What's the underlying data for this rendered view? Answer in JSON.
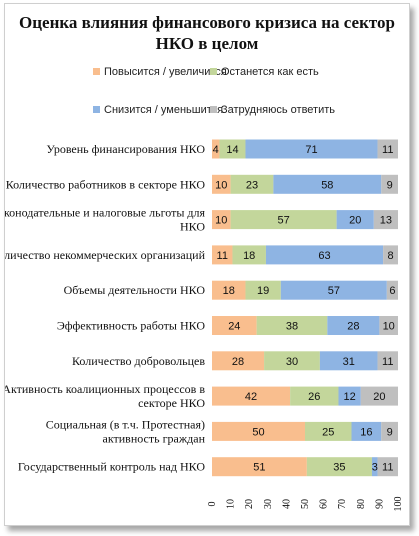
{
  "chart_data": {
    "type": "bar",
    "stacked": true,
    "orientation": "horizontal",
    "title": "Оценка влияния финансового кризиса на сектор\nНКО в целом",
    "legend_position": "top",
    "xlim": [
      0,
      100
    ],
    "x_ticks": [
      "0",
      "10",
      "20",
      "30",
      "40",
      "50",
      "60",
      "70",
      "80",
      "90",
      "100"
    ],
    "categories": [
      "Уровень финансирования НКО",
      "Количество работников в секторе НКО",
      "Законодательные и налоговые льготы для НКО",
      "Количество некоммерческих организаций",
      "Объемы деятельности НКО",
      "Эффективность работы НКО",
      "Количество добровольцев",
      "Активность коалиционных процессов в секторе НКО",
      "Социальная (в т.ч. Протестная) активность граждан",
      "Государственный контроль над НКО"
    ],
    "series": [
      {
        "name": "Повысится / увеличится",
        "color": "#F9BE8E",
        "values": [
          4,
          10,
          10,
          11,
          18,
          24,
          28,
          42,
          50,
          51
        ]
      },
      {
        "name": "Останется как есть",
        "color": "#C3D69B",
        "values": [
          14,
          23,
          57,
          18,
          19,
          38,
          30,
          26,
          25,
          35
        ]
      },
      {
        "name": "Снизится / уменьшится",
        "color": "#8EB4E3",
        "values": [
          71,
          58,
          20,
          63,
          57,
          28,
          31,
          12,
          16,
          3
        ]
      },
      {
        "name": "Затрудняюсь ответить",
        "color": "#BFBFBF",
        "values": [
          11,
          9,
          13,
          8,
          6,
          10,
          11,
          20,
          9,
          11
        ]
      }
    ]
  }
}
